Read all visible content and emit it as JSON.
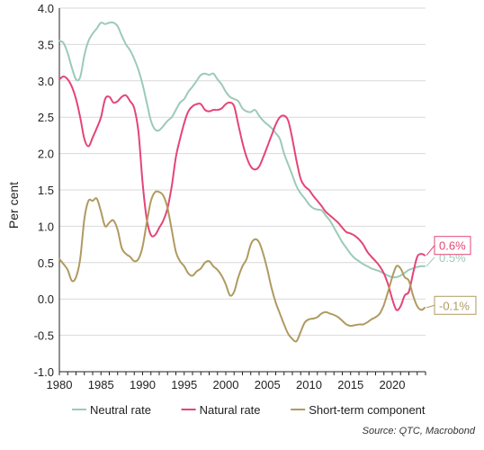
{
  "chart_data": {
    "type": "line",
    "title": "",
    "xlabel": "",
    "ylabel": "Per cent",
    "xlim": [
      1980,
      2024
    ],
    "ylim": [
      -1.0,
      4.0
    ],
    "x_ticks": [
      "1980",
      "1985",
      "1990",
      "1995",
      "2000",
      "2005",
      "2010",
      "2015",
      "2020"
    ],
    "y_ticks": [
      "4.0",
      "3.5",
      "3.0",
      "2.5",
      "2.0",
      "1.5",
      "1.0",
      "0.5",
      "0.0",
      "-0.5",
      "-1.0"
    ],
    "grid": "horizontal",
    "legend_position": "bottom",
    "source": "Source: QTC, Macrobond",
    "colors": {
      "Neutral rate": "#9ccab8",
      "Natural rate": "#e34577",
      "Short-term component": "#b09a60"
    },
    "series": [
      {
        "name": "Neutral rate",
        "color": "#9ccab8",
        "end_label": "0.5%",
        "points": [
          [
            1980.0,
            3.55
          ],
          [
            1980.5,
            3.52
          ],
          [
            1981.0,
            3.38
          ],
          [
            1981.5,
            3.18
          ],
          [
            1982.0,
            3.02
          ],
          [
            1982.5,
            3.05
          ],
          [
            1983.0,
            3.35
          ],
          [
            1983.5,
            3.55
          ],
          [
            1984.0,
            3.65
          ],
          [
            1984.5,
            3.72
          ],
          [
            1985.0,
            3.8
          ],
          [
            1985.5,
            3.78
          ],
          [
            1986.0,
            3.8
          ],
          [
            1986.5,
            3.8
          ],
          [
            1987.0,
            3.75
          ],
          [
            1987.5,
            3.62
          ],
          [
            1988.0,
            3.5
          ],
          [
            1988.5,
            3.42
          ],
          [
            1989.0,
            3.3
          ],
          [
            1989.5,
            3.15
          ],
          [
            1990.0,
            2.95
          ],
          [
            1990.5,
            2.7
          ],
          [
            1991.0,
            2.45
          ],
          [
            1991.5,
            2.33
          ],
          [
            1992.0,
            2.32
          ],
          [
            1992.5,
            2.38
          ],
          [
            1993.0,
            2.45
          ],
          [
            1993.5,
            2.5
          ],
          [
            1994.0,
            2.6
          ],
          [
            1994.5,
            2.7
          ],
          [
            1995.0,
            2.75
          ],
          [
            1995.5,
            2.85
          ],
          [
            1996.0,
            2.92
          ],
          [
            1996.5,
            3.0
          ],
          [
            1997.0,
            3.08
          ],
          [
            1997.5,
            3.1
          ],
          [
            1998.0,
            3.08
          ],
          [
            1998.5,
            3.1
          ],
          [
            1999.0,
            3.02
          ],
          [
            1999.5,
            2.95
          ],
          [
            2000.0,
            2.85
          ],
          [
            2000.5,
            2.78
          ],
          [
            2001.0,
            2.75
          ],
          [
            2001.5,
            2.72
          ],
          [
            2002.0,
            2.62
          ],
          [
            2002.5,
            2.58
          ],
          [
            2003.0,
            2.57
          ],
          [
            2003.5,
            2.6
          ],
          [
            2004.0,
            2.52
          ],
          [
            2004.5,
            2.45
          ],
          [
            2005.0,
            2.4
          ],
          [
            2005.5,
            2.35
          ],
          [
            2006.0,
            2.28
          ],
          [
            2006.5,
            2.2
          ],
          [
            2007.0,
            2.0
          ],
          [
            2007.5,
            1.85
          ],
          [
            2008.0,
            1.7
          ],
          [
            2008.5,
            1.55
          ],
          [
            2009.0,
            1.45
          ],
          [
            2009.5,
            1.38
          ],
          [
            2010.0,
            1.3
          ],
          [
            2010.5,
            1.25
          ],
          [
            2011.0,
            1.23
          ],
          [
            2011.5,
            1.22
          ],
          [
            2012.0,
            1.15
          ],
          [
            2012.5,
            1.08
          ],
          [
            2013.0,
            0.98
          ],
          [
            2013.5,
            0.88
          ],
          [
            2014.0,
            0.78
          ],
          [
            2014.5,
            0.7
          ],
          [
            2015.0,
            0.62
          ],
          [
            2015.5,
            0.56
          ],
          [
            2016.0,
            0.52
          ],
          [
            2016.5,
            0.48
          ],
          [
            2017.0,
            0.45
          ],
          [
            2017.5,
            0.42
          ],
          [
            2018.0,
            0.4
          ],
          [
            2018.5,
            0.38
          ],
          [
            2019.0,
            0.35
          ],
          [
            2019.5,
            0.32
          ],
          [
            2020.0,
            0.3
          ],
          [
            2020.5,
            0.3
          ],
          [
            2021.0,
            0.32
          ],
          [
            2021.5,
            0.36
          ],
          [
            2022.0,
            0.4
          ],
          [
            2022.5,
            0.42
          ],
          [
            2023.0,
            0.44
          ],
          [
            2023.5,
            0.45
          ],
          [
            2023.9,
            0.45
          ]
        ]
      },
      {
        "name": "Natural rate",
        "color": "#e34577",
        "end_label": "0.6%",
        "points": [
          [
            1980.0,
            3.02
          ],
          [
            1980.5,
            3.06
          ],
          [
            1981.0,
            3.02
          ],
          [
            1981.5,
            2.92
          ],
          [
            1982.0,
            2.75
          ],
          [
            1982.5,
            2.5
          ],
          [
            1983.0,
            2.2
          ],
          [
            1983.5,
            2.1
          ],
          [
            1984.0,
            2.22
          ],
          [
            1984.5,
            2.35
          ],
          [
            1985.0,
            2.5
          ],
          [
            1985.5,
            2.75
          ],
          [
            1986.0,
            2.78
          ],
          [
            1986.5,
            2.7
          ],
          [
            1987.0,
            2.72
          ],
          [
            1987.5,
            2.78
          ],
          [
            1988.0,
            2.8
          ],
          [
            1988.5,
            2.72
          ],
          [
            1989.0,
            2.62
          ],
          [
            1989.5,
            2.3
          ],
          [
            1990.0,
            1.6
          ],
          [
            1990.5,
            1.1
          ],
          [
            1991.0,
            0.88
          ],
          [
            1991.5,
            0.88
          ],
          [
            1992.0,
            0.98
          ],
          [
            1992.5,
            1.08
          ],
          [
            1993.0,
            1.25
          ],
          [
            1993.5,
            1.55
          ],
          [
            1994.0,
            1.95
          ],
          [
            1994.5,
            2.2
          ],
          [
            1995.0,
            2.42
          ],
          [
            1995.5,
            2.58
          ],
          [
            1996.0,
            2.65
          ],
          [
            1996.5,
            2.68
          ],
          [
            1997.0,
            2.68
          ],
          [
            1997.5,
            2.6
          ],
          [
            1998.0,
            2.58
          ],
          [
            1998.5,
            2.6
          ],
          [
            1999.0,
            2.6
          ],
          [
            1999.5,
            2.62
          ],
          [
            2000.0,
            2.68
          ],
          [
            2000.5,
            2.7
          ],
          [
            2001.0,
            2.65
          ],
          [
            2001.5,
            2.4
          ],
          [
            2002.0,
            2.15
          ],
          [
            2002.5,
            1.95
          ],
          [
            2003.0,
            1.82
          ],
          [
            2003.5,
            1.78
          ],
          [
            2004.0,
            1.82
          ],
          [
            2004.5,
            1.95
          ],
          [
            2005.0,
            2.1
          ],
          [
            2005.5,
            2.25
          ],
          [
            2006.0,
            2.4
          ],
          [
            2006.5,
            2.5
          ],
          [
            2007.0,
            2.52
          ],
          [
            2007.5,
            2.45
          ],
          [
            2008.0,
            2.2
          ],
          [
            2008.5,
            1.9
          ],
          [
            2009.0,
            1.65
          ],
          [
            2009.5,
            1.55
          ],
          [
            2010.0,
            1.5
          ],
          [
            2010.5,
            1.42
          ],
          [
            2011.0,
            1.35
          ],
          [
            2011.5,
            1.28
          ],
          [
            2012.0,
            1.2
          ],
          [
            2012.5,
            1.15
          ],
          [
            2013.0,
            1.1
          ],
          [
            2013.5,
            1.05
          ],
          [
            2014.0,
            0.98
          ],
          [
            2014.5,
            0.92
          ],
          [
            2015.0,
            0.9
          ],
          [
            2015.5,
            0.87
          ],
          [
            2016.0,
            0.82
          ],
          [
            2016.5,
            0.75
          ],
          [
            2017.0,
            0.65
          ],
          [
            2017.5,
            0.58
          ],
          [
            2018.0,
            0.52
          ],
          [
            2018.5,
            0.45
          ],
          [
            2019.0,
            0.35
          ],
          [
            2019.5,
            0.2
          ],
          [
            2020.0,
            0.0
          ],
          [
            2020.5,
            -0.15
          ],
          [
            2021.0,
            -0.1
          ],
          [
            2021.5,
            0.05
          ],
          [
            2022.0,
            0.1
          ],
          [
            2022.5,
            0.35
          ],
          [
            2023.0,
            0.58
          ],
          [
            2023.5,
            0.62
          ],
          [
            2023.9,
            0.6
          ]
        ]
      },
      {
        "name": "Short-term component",
        "color": "#b09a60",
        "end_label": "-0.1%",
        "points": [
          [
            1980.0,
            0.55
          ],
          [
            1980.5,
            0.48
          ],
          [
            1981.0,
            0.4
          ],
          [
            1981.5,
            0.25
          ],
          [
            1982.0,
            0.3
          ],
          [
            1982.5,
            0.55
          ],
          [
            1983.0,
            1.1
          ],
          [
            1983.5,
            1.35
          ],
          [
            1984.0,
            1.35
          ],
          [
            1984.5,
            1.38
          ],
          [
            1985.0,
            1.2
          ],
          [
            1985.5,
            1.0
          ],
          [
            1986.0,
            1.05
          ],
          [
            1986.5,
            1.08
          ],
          [
            1987.0,
            0.95
          ],
          [
            1987.5,
            0.7
          ],
          [
            1988.0,
            0.62
          ],
          [
            1988.5,
            0.58
          ],
          [
            1989.0,
            0.52
          ],
          [
            1989.5,
            0.55
          ],
          [
            1990.0,
            0.72
          ],
          [
            1990.5,
            1.05
          ],
          [
            1991.0,
            1.35
          ],
          [
            1991.5,
            1.47
          ],
          [
            1992.0,
            1.47
          ],
          [
            1992.5,
            1.42
          ],
          [
            1993.0,
            1.25
          ],
          [
            1993.5,
            0.95
          ],
          [
            1994.0,
            0.65
          ],
          [
            1994.5,
            0.52
          ],
          [
            1995.0,
            0.45
          ],
          [
            1995.5,
            0.35
          ],
          [
            1996.0,
            0.32
          ],
          [
            1996.5,
            0.38
          ],
          [
            1997.0,
            0.42
          ],
          [
            1997.5,
            0.5
          ],
          [
            1998.0,
            0.52
          ],
          [
            1998.5,
            0.45
          ],
          [
            1999.0,
            0.4
          ],
          [
            1999.5,
            0.32
          ],
          [
            2000.0,
            0.2
          ],
          [
            2000.5,
            0.05
          ],
          [
            2001.0,
            0.1
          ],
          [
            2001.5,
            0.3
          ],
          [
            2002.0,
            0.45
          ],
          [
            2002.5,
            0.55
          ],
          [
            2003.0,
            0.75
          ],
          [
            2003.5,
            0.82
          ],
          [
            2004.0,
            0.78
          ],
          [
            2004.5,
            0.62
          ],
          [
            2005.0,
            0.4
          ],
          [
            2005.5,
            0.15
          ],
          [
            2006.0,
            -0.05
          ],
          [
            2006.5,
            -0.2
          ],
          [
            2007.0,
            -0.35
          ],
          [
            2007.5,
            -0.48
          ],
          [
            2008.0,
            -0.55
          ],
          [
            2008.5,
            -0.58
          ],
          [
            2009.0,
            -0.45
          ],
          [
            2009.5,
            -0.32
          ],
          [
            2010.0,
            -0.28
          ],
          [
            2010.5,
            -0.27
          ],
          [
            2011.0,
            -0.25
          ],
          [
            2011.5,
            -0.2
          ],
          [
            2012.0,
            -0.18
          ],
          [
            2012.5,
            -0.2
          ],
          [
            2013.0,
            -0.22
          ],
          [
            2013.5,
            -0.25
          ],
          [
            2014.0,
            -0.3
          ],
          [
            2014.5,
            -0.35
          ],
          [
            2015.0,
            -0.37
          ],
          [
            2015.5,
            -0.36
          ],
          [
            2016.0,
            -0.35
          ],
          [
            2016.5,
            -0.35
          ],
          [
            2017.0,
            -0.32
          ],
          [
            2017.5,
            -0.28
          ],
          [
            2018.0,
            -0.25
          ],
          [
            2018.5,
            -0.2
          ],
          [
            2019.0,
            -0.08
          ],
          [
            2019.5,
            0.1
          ],
          [
            2020.0,
            0.3
          ],
          [
            2020.5,
            0.45
          ],
          [
            2021.0,
            0.42
          ],
          [
            2021.5,
            0.3
          ],
          [
            2022.0,
            0.25
          ],
          [
            2022.5,
            0.05
          ],
          [
            2023.0,
            -0.1
          ],
          [
            2023.5,
            -0.15
          ],
          [
            2023.9,
            -0.12
          ]
        ]
      }
    ]
  }
}
